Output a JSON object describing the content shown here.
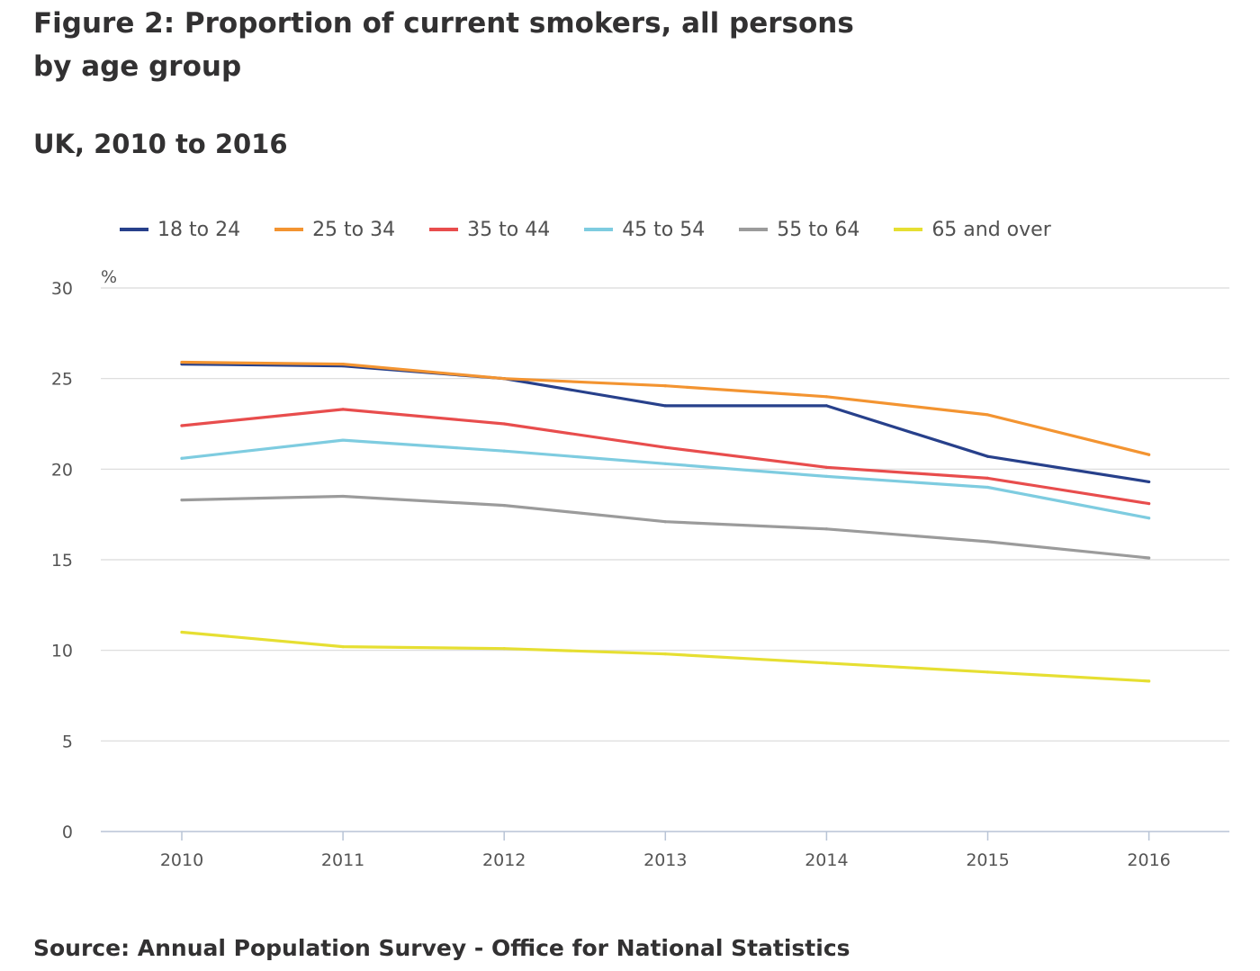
{
  "title": "Figure 2: Proportion of current smokers, all persons by age group",
  "subtitle": "UK, 2010 to 2016",
  "source": "Source: Annual Population Survey - Office for National Statistics",
  "chart_data": {
    "type": "line",
    "title": "Figure 2: Proportion of current smokers, all persons by age group",
    "subtitle": "UK, 2010 to 2016",
    "ylabel": "%",
    "xlabel": "",
    "ylim": [
      0,
      30
    ],
    "yticks": [
      0,
      5,
      10,
      15,
      20,
      25,
      30
    ],
    "grid": true,
    "legend_position": "top",
    "categories": [
      "2010",
      "2011",
      "2012",
      "2013",
      "2014",
      "2015",
      "2016"
    ],
    "series": [
      {
        "name": "18 to 24",
        "color": "#27408b",
        "values": [
          25.8,
          25.7,
          25.0,
          23.5,
          23.5,
          20.7,
          19.3
        ]
      },
      {
        "name": "25 to 34",
        "color": "#f39431",
        "values": [
          25.9,
          25.8,
          25.0,
          24.6,
          24.0,
          23.0,
          20.8
        ]
      },
      {
        "name": "35 to 44",
        "color": "#e84d4d",
        "values": [
          22.4,
          23.3,
          22.5,
          21.2,
          20.1,
          19.5,
          18.1
        ]
      },
      {
        "name": "45 to 54",
        "color": "#7ecce0",
        "values": [
          20.6,
          21.6,
          21.0,
          20.3,
          19.6,
          19.0,
          17.3
        ]
      },
      {
        "name": "55 to 64",
        "color": "#9b9b9b",
        "values": [
          18.3,
          18.5,
          18.0,
          17.1,
          16.7,
          16.0,
          15.1
        ]
      },
      {
        "name": "65 and over",
        "color": "#e6df32",
        "values": [
          11.0,
          10.2,
          10.1,
          9.8,
          9.3,
          8.8,
          8.3
        ]
      }
    ]
  }
}
